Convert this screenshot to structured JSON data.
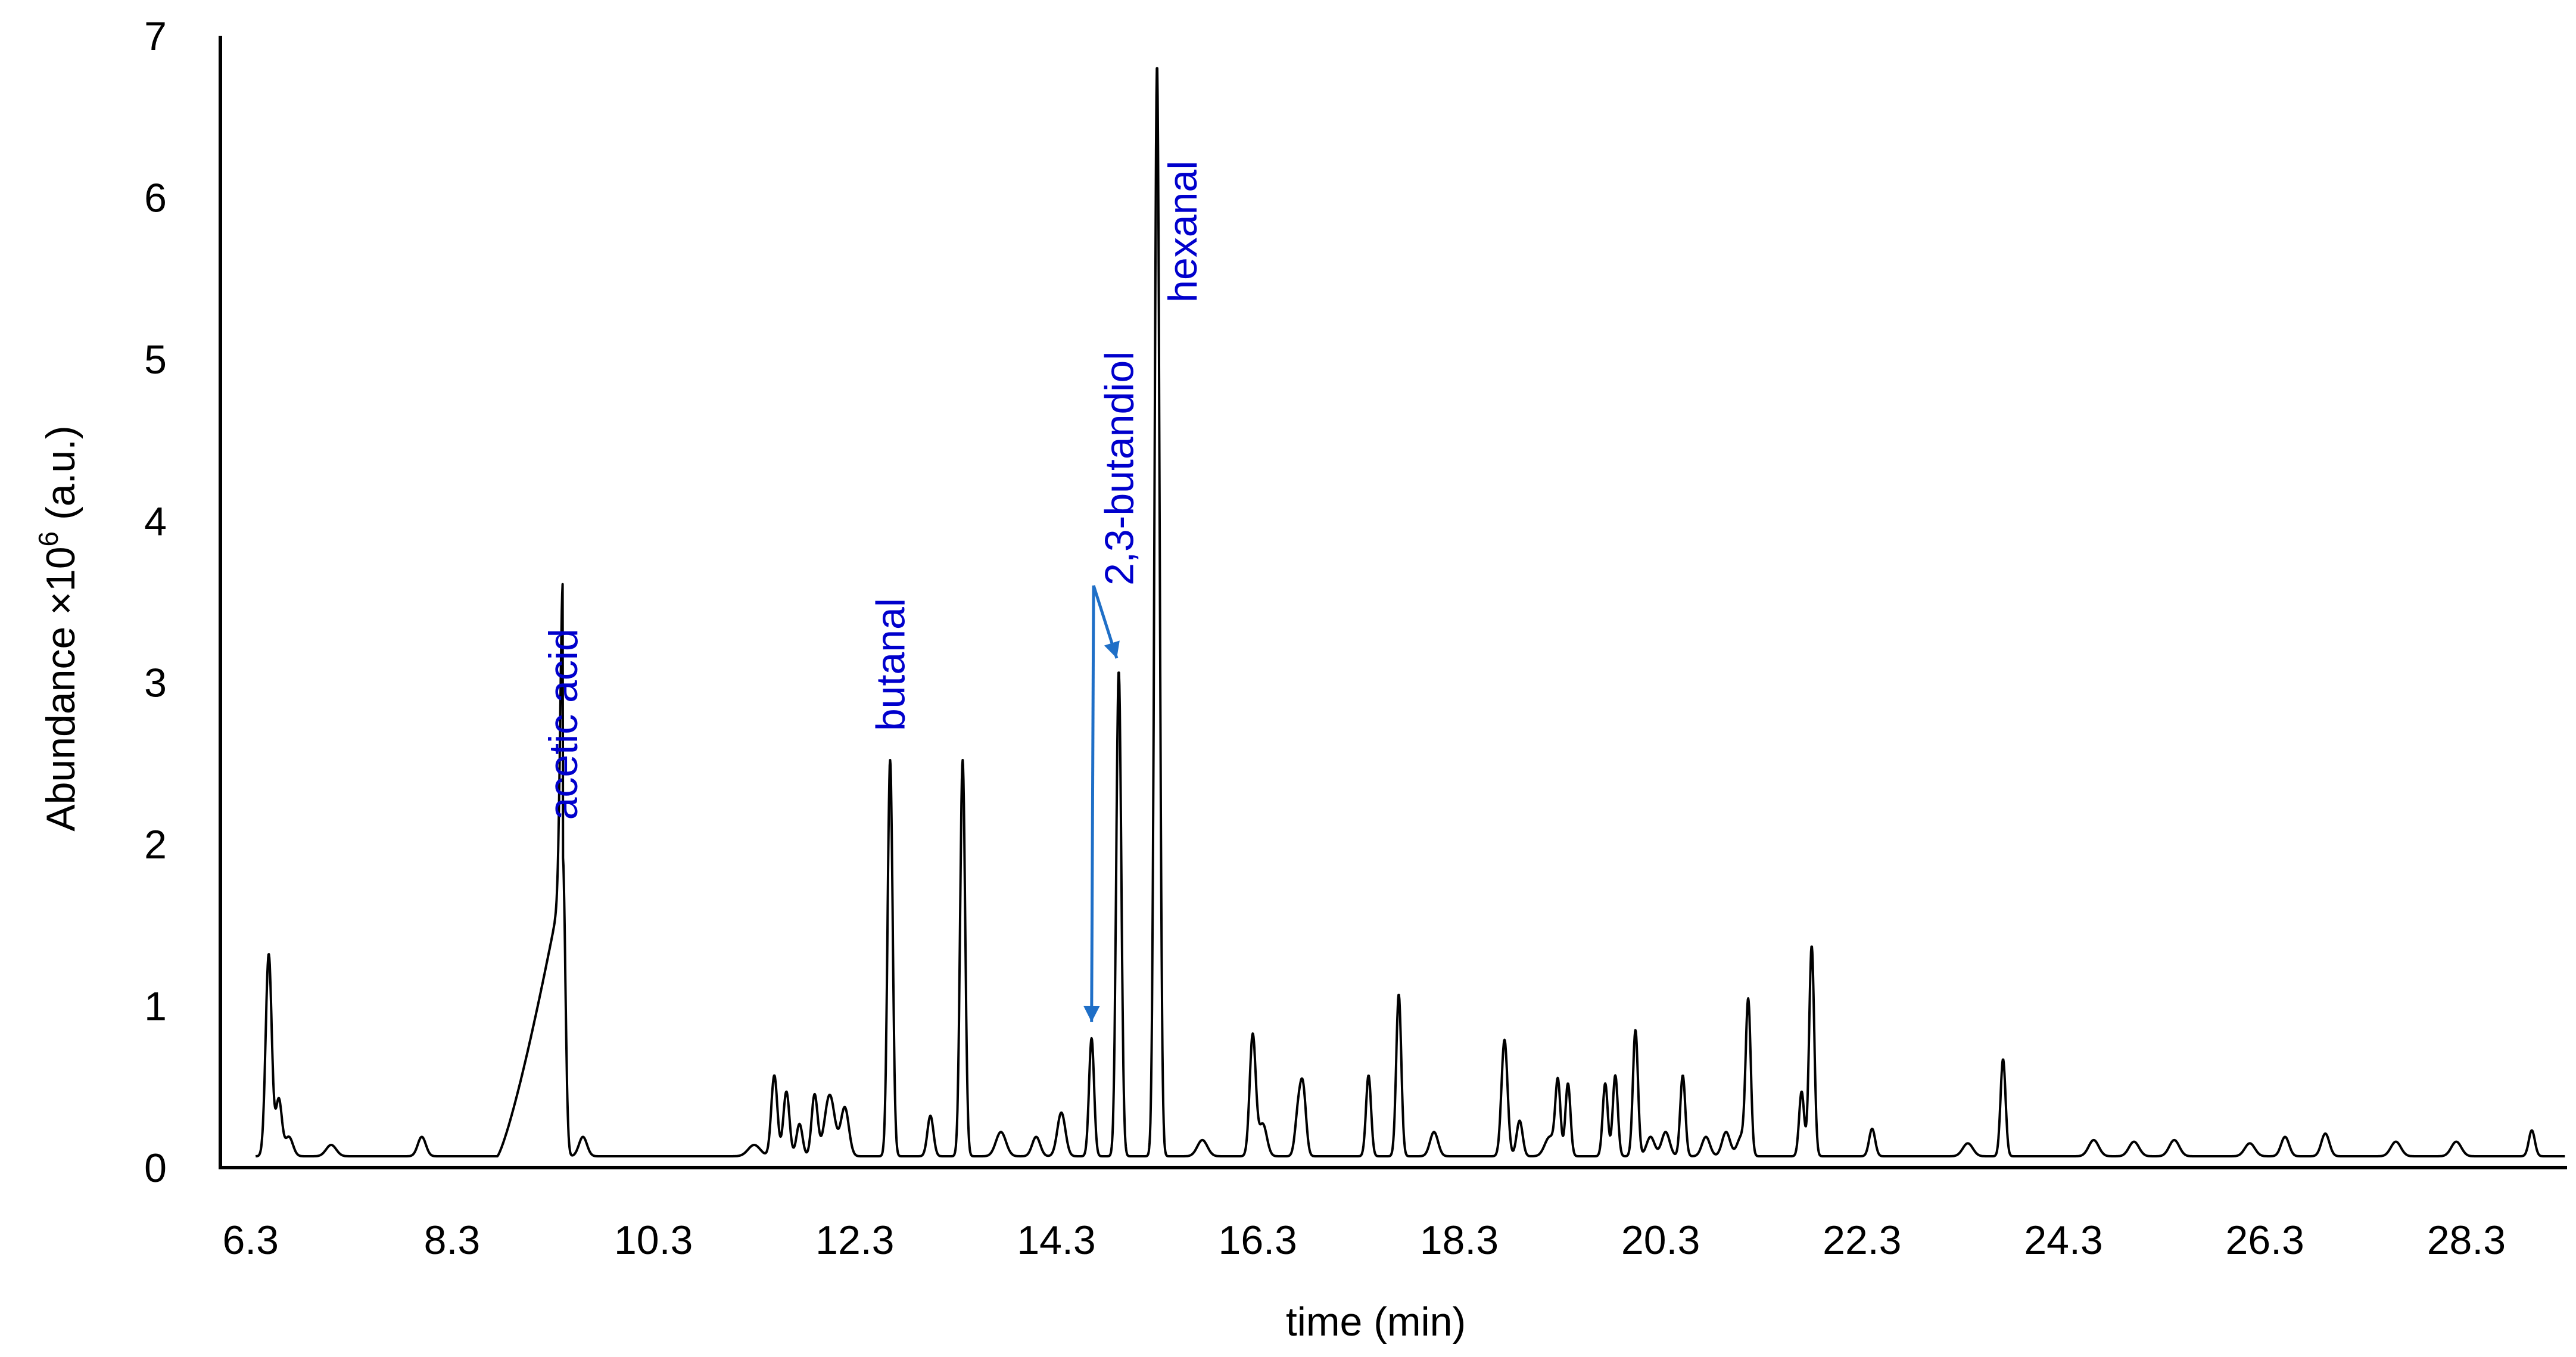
{
  "chart_data": {
    "type": "line",
    "title": "",
    "xlabel": "time (min)",
    "ylabel_prefix": "Abundance ×10",
    "ylabel_exp": "6",
    "ylabel_suffix": " (a.u.)",
    "xlim": [
      6.0,
      29.3
    ],
    "ylim": [
      0,
      7
    ],
    "x_ticks": [
      "6.3",
      "8.3",
      "10.3",
      "12.3",
      "14.3",
      "16.3",
      "18.3",
      "20.3",
      "22.3",
      "24.3",
      "26.3",
      "28.3"
    ],
    "y_ticks": [
      "0",
      "1",
      "2",
      "3",
      "4",
      "5",
      "6",
      "7"
    ],
    "baseline": 0.07,
    "peaks": [
      [
        6.48,
        1.25,
        0.03
      ],
      [
        6.58,
        0.35,
        0.03
      ],
      [
        6.68,
        0.12,
        0.04
      ],
      [
        7.1,
        0.07,
        0.05
      ],
      [
        8.0,
        0.12,
        0.04
      ],
      [
        9.4,
        1.85,
        0.025
      ],
      [
        9.6,
        0.12,
        0.04
      ],
      [
        11.3,
        0.07,
        0.06
      ],
      [
        11.5,
        0.5,
        0.03
      ],
      [
        11.62,
        0.4,
        0.03
      ],
      [
        11.75,
        0.2,
        0.03
      ],
      [
        11.9,
        0.38,
        0.03
      ],
      [
        12.05,
        0.38,
        0.05
      ],
      [
        12.2,
        0.3,
        0.04
      ],
      [
        12.65,
        2.45,
        0.025
      ],
      [
        13.05,
        0.25,
        0.03
      ],
      [
        13.37,
        2.45,
        0.025
      ],
      [
        13.75,
        0.15,
        0.05
      ],
      [
        14.1,
        0.12,
        0.04
      ],
      [
        14.35,
        0.27,
        0.04
      ],
      [
        14.65,
        0.73,
        0.025
      ],
      [
        14.92,
        3.0,
        0.025
      ],
      [
        15.3,
        6.75,
        0.025
      ],
      [
        15.75,
        0.1,
        0.05
      ],
      [
        16.25,
        0.75,
        0.03
      ],
      [
        16.35,
        0.2,
        0.04
      ],
      [
        16.7,
        0.25,
        0.03
      ],
      [
        16.75,
        0.4,
        0.03
      ],
      [
        17.4,
        0.5,
        0.025
      ],
      [
        17.7,
        1.0,
        0.025
      ],
      [
        18.05,
        0.15,
        0.04
      ],
      [
        18.75,
        0.72,
        0.03
      ],
      [
        18.9,
        0.22,
        0.03
      ],
      [
        19.2,
        0.12,
        0.05
      ],
      [
        19.28,
        0.45,
        0.025
      ],
      [
        19.38,
        0.45,
        0.025
      ],
      [
        19.75,
        0.45,
        0.025
      ],
      [
        19.85,
        0.5,
        0.025
      ],
      [
        20.05,
        0.78,
        0.025
      ],
      [
        20.2,
        0.12,
        0.04
      ],
      [
        20.35,
        0.15,
        0.04
      ],
      [
        20.52,
        0.5,
        0.025
      ],
      [
        20.75,
        0.12,
        0.04
      ],
      [
        20.95,
        0.15,
        0.04
      ],
      [
        21.1,
        0.12,
        0.04
      ],
      [
        21.17,
        0.95,
        0.025
      ],
      [
        21.7,
        0.4,
        0.025
      ],
      [
        21.8,
        1.3,
        0.025
      ],
      [
        22.4,
        0.17,
        0.03
      ],
      [
        23.7,
        0.6,
        0.025
      ],
      [
        23.35,
        0.08,
        0.05
      ],
      [
        24.6,
        0.1,
        0.05
      ],
      [
        25.0,
        0.09,
        0.05
      ],
      [
        25.4,
        0.1,
        0.05
      ],
      [
        26.15,
        0.08,
        0.05
      ],
      [
        26.5,
        0.12,
        0.04
      ],
      [
        26.9,
        0.14,
        0.04
      ],
      [
        27.6,
        0.09,
        0.05
      ],
      [
        28.2,
        0.09,
        0.05
      ],
      [
        28.95,
        0.16,
        0.03
      ]
    ],
    "annotations": [
      {
        "text": "acetic  acid",
        "x": 9.4,
        "y": 2.15
      },
      {
        "text": "butanal",
        "x": 12.65,
        "y": 2.7
      },
      {
        "text": "2,3-butandiol",
        "x": 14.92,
        "y": 3.6
      },
      {
        "text": "hexanal",
        "x": 15.55,
        "y": 5.35
      }
    ],
    "arrow": {
      "from": [
        14.67,
        3.6
      ],
      "to_low": [
        14.65,
        0.9
      ],
      "to_high": [
        14.9,
        3.15
      ],
      "color": "#1f6fc7"
    }
  }
}
